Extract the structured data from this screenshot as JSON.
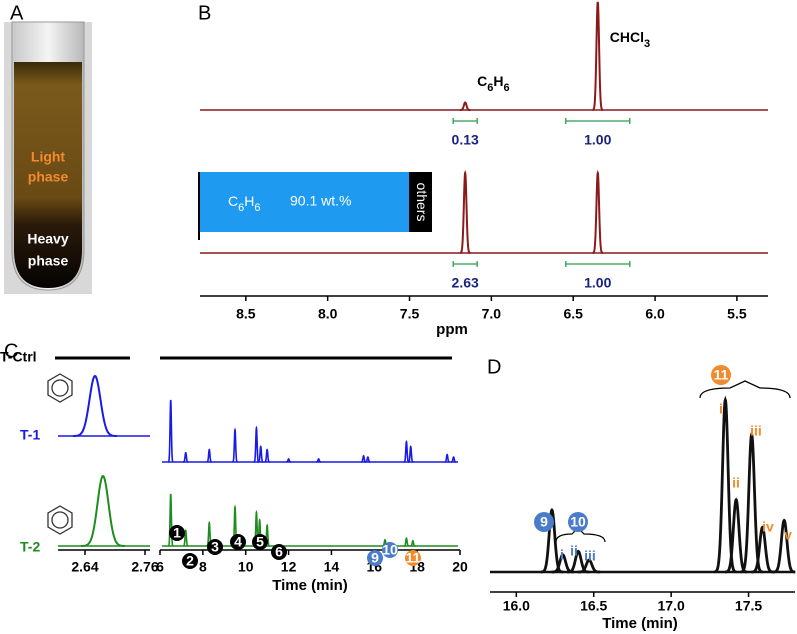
{
  "panel_a": {
    "label": "A",
    "upper_phase": [
      "Light",
      "phase"
    ],
    "lower_phase": [
      "Heavy",
      "phase"
    ]
  },
  "panel_b": {
    "label": "B",
    "x_label": "ppm",
    "xlim": [
      8.78,
      5.31
    ],
    "xticks": [
      8.5,
      {
        "value": 8,
        "label": "8.0"
      },
      7.5,
      {
        "value": 7,
        "label": "7.0"
      },
      6.5,
      {
        "value": 6,
        "label": "6.0"
      },
      5.5
    ],
    "color": "#8b1a1a",
    "integral_color": "#2e9e4e",
    "integral_text_color": "#1a237e",
    "spectra": [
      {
        "peaks": [
          {
            "x": 7.16,
            "h": 0.07
          },
          {
            "x": 6.35,
            "h": 1
          }
        ],
        "integrals": [
          {
            "x": 7.16,
            "value": 0.13
          },
          {
            "x": 6.35,
            "value": 1,
            "label": "1.00"
          }
        ]
      },
      {
        "peaks": [
          {
            "x": 7.16,
            "h": 1
          },
          {
            "x": 6.35,
            "h": 1
          }
        ],
        "integrals": [
          {
            "x": 7.16,
            "value": 2.63
          },
          {
            "x": 6.35,
            "value": 1,
            "label": "1.00"
          }
        ]
      }
    ],
    "peak_labels": [
      {
        "parts": [
          "C",
          "6",
          "H",
          "6"
        ],
        "x": 7.16
      },
      {
        "parts": [
          "CHCl",
          "3"
        ],
        "x": 6.35
      }
    ],
    "composition": {
      "formula": [
        "C",
        "6",
        "H",
        "6"
      ],
      "value": 90.1,
      "value_label": "90.1 wt.%",
      "others": "others",
      "color": "#1e9bf0"
    }
  },
  "panel_c": {
    "label": "C",
    "control": "T-Ctrl",
    "x_label": "Time (min)",
    "zoom": {
      "xlim": [
        2.586,
        2.77
      ],
      "xticks": [
        2.64,
        2.76
      ]
    },
    "full": {
      "xlim": [
        6,
        20
      ],
      "xticks": [
        6,
        8,
        10,
        12,
        14,
        16,
        18,
        20
      ]
    },
    "traces": [
      {
        "name": "T-1",
        "color": "#1a1ae6",
        "zoom_peaks": [
          {
            "x": 2.66,
            "h": 1
          }
        ],
        "peaks": [
          {
            "x": 6.5,
            "h": 1
          },
          {
            "x": 7.2,
            "h": 0.15
          },
          {
            "x": 8.3,
            "h": 0.2
          },
          {
            "x": 9.5,
            "h": 0.52
          },
          {
            "x": 10.5,
            "h": 0.55
          },
          {
            "x": 10.7,
            "h": 0.25
          },
          {
            "x": 11.0,
            "h": 0.2
          },
          {
            "x": 12.0,
            "h": 0.05
          },
          {
            "x": 13.4,
            "h": 0.05
          },
          {
            "x": 15.5,
            "h": 0.1
          },
          {
            "x": 15.7,
            "h": 0.08
          },
          {
            "x": 17.5,
            "h": 0.33
          },
          {
            "x": 17.7,
            "h": 0.25
          },
          {
            "x": 19.4,
            "h": 0.12
          },
          {
            "x": 19.7,
            "h": 0.08
          }
        ]
      },
      {
        "name": "T-2",
        "color": "#1e8c1e",
        "zoom_peaks": [
          {
            "x": 2.676,
            "h": 1
          }
        ],
        "peaks": [
          {
            "x": 6.5,
            "h": 1
          },
          {
            "x": 7.2,
            "h": 0.3
          },
          {
            "x": 8.3,
            "h": 0.45
          },
          {
            "x": 9.5,
            "h": 0.75
          },
          {
            "x": 10.5,
            "h": 0.65
          },
          {
            "x": 10.65,
            "h": 0.5
          },
          {
            "x": 11.0,
            "h": 0.4
          },
          {
            "x": 16.5,
            "h": 0.12
          },
          {
            "x": 17.5,
            "h": 0.15
          },
          {
            "x": 17.8,
            "h": 0.1
          }
        ]
      }
    ],
    "compounds": [
      {
        "label": "1",
        "color": "#000000"
      },
      {
        "label": "2",
        "color": "#000000"
      },
      {
        "label": "3",
        "color": "#000000"
      },
      {
        "label": "4",
        "color": "#000000"
      },
      {
        "label": "5",
        "color": "#000000"
      },
      {
        "label": "6",
        "color": "#000000"
      },
      {
        "label": "9",
        "color": "#4a7cc9"
      },
      {
        "label": "10",
        "color": "#4a7cc9"
      },
      {
        "label": "11",
        "color": "#f28a2e"
      }
    ]
  },
  "panel_d": {
    "label": "D",
    "x_label": "Time (min)",
    "xlim": [
      15.83,
      17.8
    ],
    "xticks": [
      {
        "value": 16,
        "label": "16.0"
      },
      16.5,
      {
        "value": 17,
        "label": "17.0"
      },
      17.5
    ],
    "color": "#111111",
    "peaks": [
      {
        "x": 16.23,
        "h": 0.36
      },
      {
        "x": 16.3,
        "h": 0.1
      },
      {
        "x": 16.4,
        "h": 0.12
      },
      {
        "x": 16.47,
        "h": 0.07
      },
      {
        "x": 17.35,
        "h": 1
      },
      {
        "x": 17.42,
        "h": 0.42
      },
      {
        "x": 17.52,
        "h": 0.8
      },
      {
        "x": 17.59,
        "h": 0.26
      },
      {
        "x": 17.73,
        "h": 0.3
      }
    ],
    "groups": [
      {
        "label": "9",
        "color": "#4a7cc9",
        "members": []
      },
      {
        "label": "10",
        "color": "#4a7cc9",
        "members": [
          "i",
          "ii",
          "iii"
        ]
      },
      {
        "label": "11",
        "color": "#f28a2e",
        "members": [
          "i",
          "ii",
          "iii",
          "iv",
          "v"
        ]
      }
    ]
  }
}
